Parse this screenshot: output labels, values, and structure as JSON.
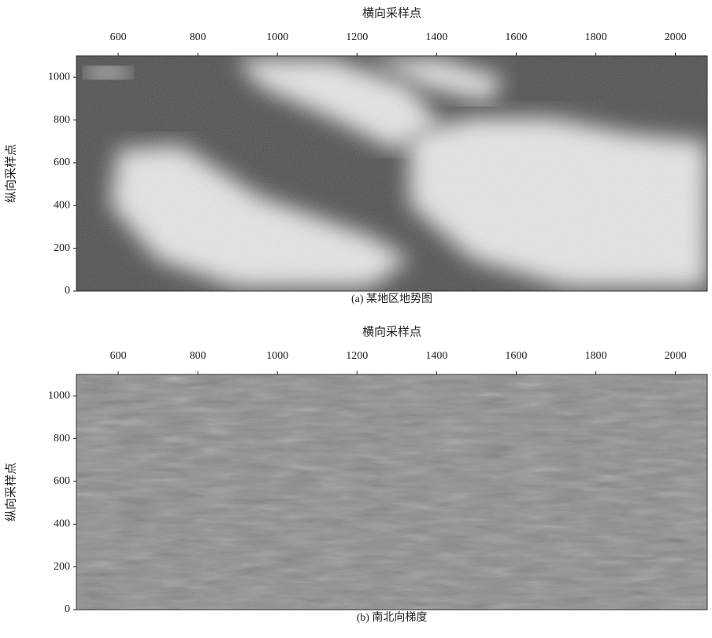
{
  "chart_data": [
    {
      "type": "image",
      "title": "(a) 某地区地势图",
      "xlabel": "横向采样点",
      "ylabel": "纵向采样点",
      "xlim": [
        495,
        2080
      ],
      "ylim": [
        0,
        1100
      ],
      "xticks": [
        600,
        800,
        1000,
        1200,
        1400,
        1600,
        1800,
        2000
      ],
      "yticks": [
        0,
        200,
        400,
        600,
        800,
        1000
      ]
    },
    {
      "type": "image",
      "title": "(b) 南北向梯度",
      "xlabel": "横向采样点",
      "ylabel": "纵向采样点",
      "xlim": [
        495,
        2080
      ],
      "ylim": [
        0,
        1100
      ],
      "xticks": [
        600,
        800,
        1000,
        1200,
        1400,
        1600,
        1800,
        2000
      ],
      "yticks": [
        0,
        200,
        400,
        600,
        800,
        1000
      ]
    }
  ]
}
